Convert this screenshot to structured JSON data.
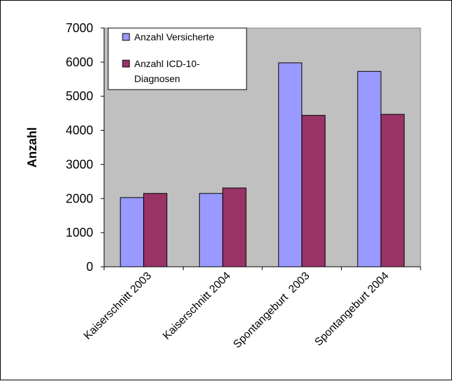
{
  "chart_data": {
    "type": "bar",
    "categories": [
      "Kaiserschnitt 2003",
      "Kaiserschnitt 2004",
      "Spontangeburt  2003",
      "Spontangeburt 2004"
    ],
    "series": [
      {
        "name": "Anzahl Versicherte",
        "color": "#9999ff",
        "values": [
          2030,
          2150,
          5980,
          5730
        ]
      },
      {
        "name": "Anzahl ICD-10-Diagnosen",
        "color": "#993366",
        "values": [
          2150,
          2310,
          4440,
          4470
        ]
      }
    ],
    "ylabel": "Anzahl",
    "ylim": [
      0,
      7000
    ],
    "yticks": [
      0,
      1000,
      2000,
      3000,
      4000,
      5000,
      6000,
      7000
    ],
    "plot_background": "#c0c0c0",
    "grid": false,
    "legend_position": "top-left",
    "legend_lines": [
      [
        "Anzahl Versicherte"
      ],
      [
        "Anzahl ICD-10-",
        "Diagnosen"
      ]
    ]
  }
}
